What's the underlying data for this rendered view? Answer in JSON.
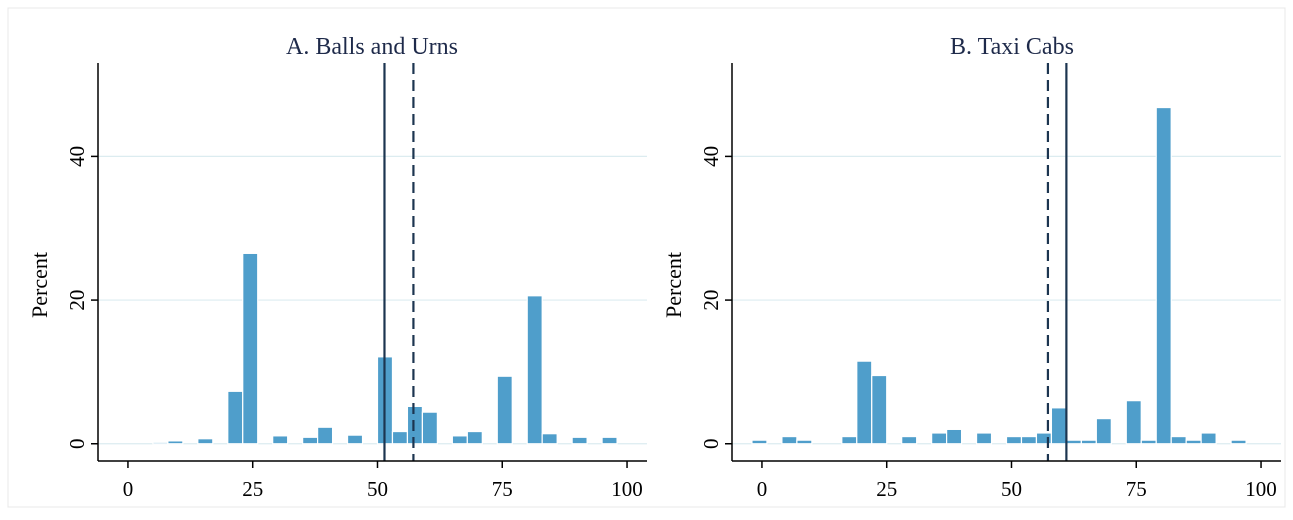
{
  "colors": {
    "bar": "#4f9ecb",
    "bar_edge": "#ffffff",
    "grid": "#dcecf0",
    "axis": "#000000",
    "vline": "#1c3550",
    "title": "#1e2a4a"
  },
  "chart_data": [
    {
      "type": "bar",
      "title": "A. Balls and Urns",
      "ylabel": "Percent",
      "xlabel": "",
      "xlim": [
        -6,
        104
      ],
      "ylim": [
        -2.4,
        53
      ],
      "xticks": [
        0,
        25,
        50,
        75,
        100
      ],
      "xtick_labels": [
        "0",
        "25",
        "50",
        "75",
        "100"
      ],
      "yticks": [
        0,
        20,
        40
      ],
      "ytick_labels": [
        "0",
        "20",
        "40"
      ],
      "grid": true,
      "bin_width": 3,
      "bins_left": [
        5,
        8,
        14,
        20,
        23,
        29,
        35,
        38,
        44,
        50,
        53,
        56,
        59,
        65,
        68,
        74,
        80,
        83,
        89,
        95
      ],
      "values": [
        0.2,
        0.4,
        0.7,
        7.3,
        26.5,
        1.1,
        0.9,
        2.3,
        1.2,
        12.1,
        1.7,
        5.2,
        4.4,
        1.1,
        1.7,
        9.4,
        20.6,
        1.4,
        0.9,
        0.9
      ],
      "vlines": [
        {
          "x": 51.4,
          "style": "solid"
        },
        {
          "x": 57.2,
          "style": "dashed"
        }
      ]
    },
    {
      "type": "bar",
      "title": "B. Taxi Cabs",
      "ylabel": "Percent",
      "xlabel": "",
      "xlim": [
        -6,
        104
      ],
      "ylim": [
        -2.4,
        53
      ],
      "xticks": [
        0,
        25,
        50,
        75,
        100
      ],
      "xtick_labels": [
        "0",
        "25",
        "50",
        "75",
        "100"
      ],
      "yticks": [
        0,
        20,
        40
      ],
      "ytick_labels": [
        "0",
        "20",
        "40"
      ],
      "grid": true,
      "bin_width": 3,
      "bins_left": [
        -2,
        4,
        7,
        16,
        19,
        22,
        28,
        34,
        37,
        43,
        49,
        52,
        55,
        58,
        61,
        64,
        67,
        73,
        76,
        79,
        82,
        85,
        88,
        94
      ],
      "values": [
        0.5,
        1.0,
        0.5,
        1.0,
        11.5,
        9.5,
        1.0,
        1.5,
        2.0,
        1.5,
        1.0,
        1.0,
        1.5,
        5.0,
        0.5,
        0.5,
        3.5,
        6.0,
        0.5,
        46.8,
        1.0,
        0.5,
        1.5,
        0.5
      ],
      "vlines": [
        {
          "x": 57.3,
          "style": "dashed"
        },
        {
          "x": 61.0,
          "style": "solid"
        }
      ]
    }
  ]
}
